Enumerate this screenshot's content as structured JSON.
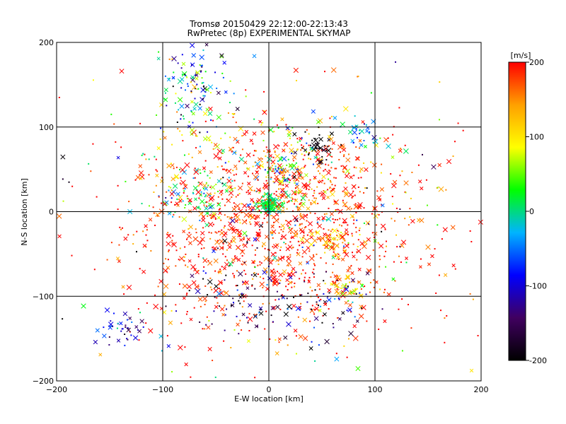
{
  "chart_data": {
    "type": "scatter",
    "title": "Tromsø 20150429 22:12:00-22:13:43",
    "subtitle": "RwPretec (8p) EXPERIMENTAL SKYMAP",
    "xlabel": "E-W location [km]",
    "ylabel": "N-S location [km]",
    "xlim": [
      -200,
      200
    ],
    "ylim": [
      -200,
      200
    ],
    "xticks": [
      -200,
      -100,
      0,
      100,
      200
    ],
    "yticks": [
      -200,
      -100,
      0,
      100,
      200
    ],
    "grid": true,
    "colorbar": {
      "label": "[m/s]",
      "range": [
        -200,
        200
      ],
      "ticks": [
        -200,
        -100,
        0,
        100,
        200
      ],
      "colors": [
        "#000000",
        "#400060",
        "#0000ff",
        "#00b4ff",
        "#00ff00",
        "#ffff00",
        "#ffa000",
        "#ff0000"
      ]
    },
    "markers": {
      "small": "dot",
      "large": "cross"
    },
    "clusters": [
      {
        "x": 0,
        "y": 8,
        "sx": 5,
        "sy": 5,
        "n": 140,
        "v": 10,
        "vs": 15
      },
      {
        "x": 12,
        "y": 45,
        "sx": 14,
        "sy": 14,
        "n": 60,
        "v": -20,
        "vs": 60
      },
      {
        "x": -70,
        "y": 145,
        "sx": 15,
        "sy": 30,
        "n": 120,
        "v": -40,
        "vs": 90
      },
      {
        "x": -75,
        "y": 20,
        "sx": 18,
        "sy": 12,
        "n": 60,
        "v": 20,
        "vs": 50
      },
      {
        "x": 0,
        "y": -30,
        "sx": 70,
        "sy": 55,
        "n": 900,
        "v": 190,
        "vs": 30
      },
      {
        "x": 40,
        "y": 40,
        "sx": 40,
        "sy": 30,
        "n": 250,
        "v": 170,
        "vs": 60
      },
      {
        "x": 60,
        "y": -35,
        "sx": 12,
        "sy": 10,
        "n": 70,
        "v": 120,
        "vs": 40
      },
      {
        "x": 75,
        "y": -90,
        "sx": 12,
        "sy": 10,
        "n": 50,
        "v": 110,
        "vs": 50
      },
      {
        "x": 45,
        "y": 78,
        "sx": 10,
        "sy": 8,
        "n": 35,
        "v": -195,
        "vs": 10
      },
      {
        "x": 85,
        "y": 95,
        "sx": 10,
        "sy": 8,
        "n": 30,
        "v": -30,
        "vs": 40
      },
      {
        "x": -140,
        "y": -140,
        "sx": 12,
        "sy": 8,
        "n": 40,
        "v": -80,
        "vs": 50
      },
      {
        "x": -35,
        "y": -90,
        "sx": 25,
        "sy": 25,
        "n": 60,
        "v": -150,
        "vs": 60
      },
      {
        "x": 40,
        "y": -110,
        "sx": 30,
        "sy": 20,
        "n": 70,
        "v": -150,
        "vs": 60
      },
      {
        "x": -40,
        "y": 60,
        "sx": 40,
        "sy": 40,
        "n": 120,
        "v": 120,
        "vs": 90
      },
      {
        "x": 0,
        "y": 0,
        "sx": 110,
        "sy": 110,
        "n": 300,
        "v": 100,
        "vs": 170
      }
    ]
  }
}
